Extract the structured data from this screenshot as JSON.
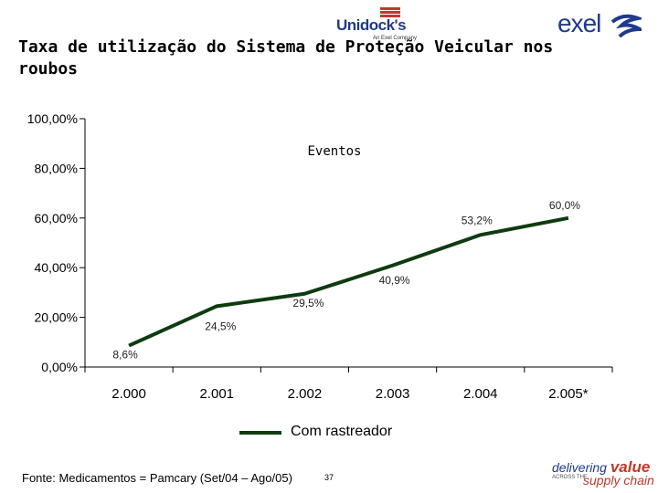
{
  "header": {
    "title": "Taxa de utilização do Sistema de Proteção Veicular nos roubos",
    "logo_left_name": "Unidock's",
    "logo_left_sub": "An Exel Company",
    "logo_right_name": "exel"
  },
  "chart_data": {
    "type": "line",
    "title": "Eventos",
    "categories": [
      "2.000",
      "2.001",
      "2.002",
      "2.003",
      "2.004",
      "2.005*"
    ],
    "series": [
      {
        "name": "Com rastreador",
        "values": [
          8.6,
          24.5,
          29.5,
          40.9,
          53.2,
          60.0
        ],
        "color": "#0e3b10"
      }
    ],
    "data_labels": [
      "8,6%",
      "24,5%",
      "29,5%",
      "40,9%",
      "53,2%",
      "60,0%"
    ],
    "y_ticks": [
      0,
      20,
      40,
      60,
      80,
      100
    ],
    "y_tick_labels": [
      "0,00%",
      "20,00%",
      "40,00%",
      "60,00%",
      "80,00%",
      "100,00%"
    ],
    "ylim": [
      0,
      100
    ],
    "xlabel": "",
    "ylabel": "",
    "grid": false,
    "legend_position": "bottom"
  },
  "legend": {
    "label": "Com rastreador"
  },
  "footer": {
    "source": "Fonte: Medicamentos = Pamcary (Set/04 – Ago/05)",
    "page_number": "37",
    "tagline_delivering": "delivering",
    "tagline_value": "value",
    "tagline_across": "ACROSS THE",
    "tagline_supply": "supply chain"
  },
  "colors": {
    "line": "#0e3b10",
    "brand_blue": "#1f3a8a",
    "brand_red": "#c0392b"
  }
}
